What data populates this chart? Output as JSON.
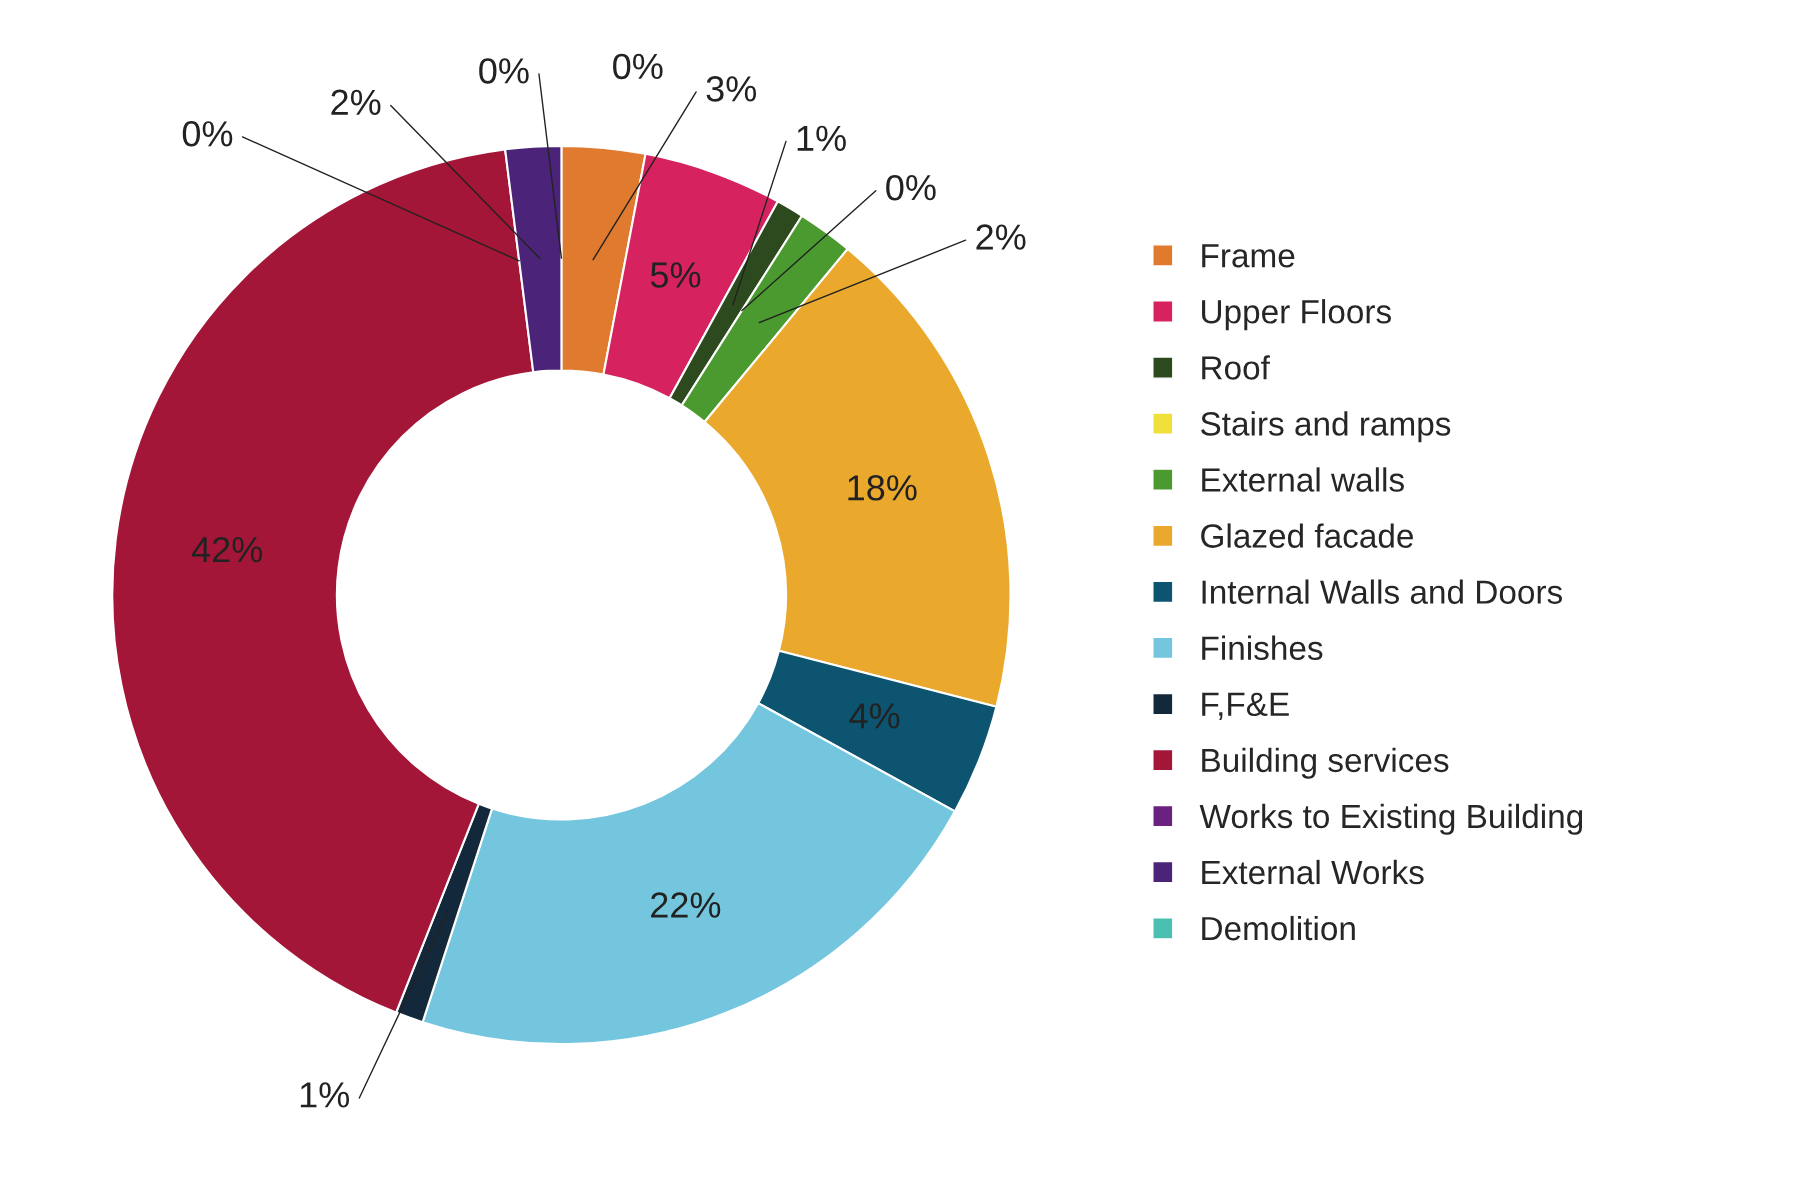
{
  "chart_data": {
    "type": "donut",
    "categories": [
      "Frame",
      "Upper Floors",
      "Roof",
      "Stairs and ramps",
      "External walls",
      "Glazed facade",
      "Internal Walls and Doors",
      "Finishes",
      "F,F&E",
      "Building services",
      "Works to Existing Building",
      "External Works",
      "Demolition"
    ],
    "values": [
      3,
      5,
      1,
      0,
      2,
      18,
      4,
      22,
      1,
      42,
      0,
      2,
      0
    ],
    "value_labels": [
      "3%",
      "5%",
      "1%",
      "0%",
      "2%",
      "18%",
      "4%",
      "22%",
      "1%",
      "42%",
      "0%",
      "2%",
      "0%"
    ],
    "colors": [
      "#e07a2e",
      "#d6225f",
      "#2d4a1e",
      "#f0e03a",
      "#4a9a2f",
      "#eaa92c",
      "#0d5470",
      "#74c6de",
      "#13283a",
      "#a31638",
      "#6b2180",
      "#4b2479",
      "#4bbfb0"
    ],
    "annotations": [
      "0%"
    ],
    "legend": "right"
  }
}
